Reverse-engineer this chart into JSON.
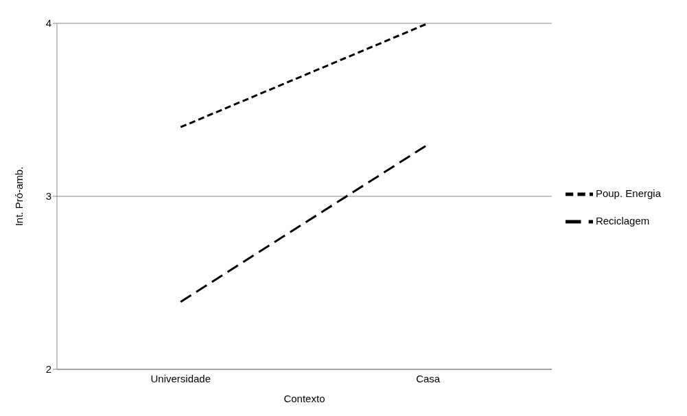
{
  "chart_data": {
    "type": "line",
    "xlabel": "Contexto",
    "ylabel": "Int. Pró-amb.",
    "categories": [
      "Universidade",
      "Casa"
    ],
    "series": [
      {
        "name": "Poup. Energia",
        "color": "#000000",
        "values": [
          3.4,
          4.0
        ]
      },
      {
        "name": "Reciclagem",
        "color": "#000000",
        "values": [
          2.39,
          3.3
        ]
      }
    ],
    "ylim": [
      2,
      4
    ],
    "yticks": [
      2,
      3,
      4
    ],
    "grid": "y",
    "legend": "right",
    "marker": "none",
    "line_style": "dashed"
  }
}
